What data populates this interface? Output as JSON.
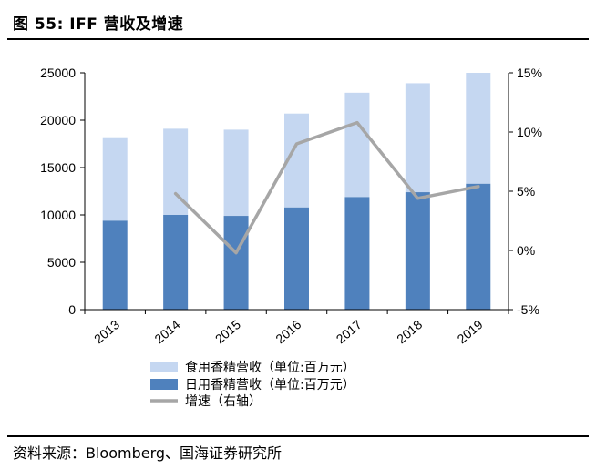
{
  "figure": {
    "title": "图 55: IFF 营收及增速",
    "source": "资料来源：Bloomberg、国海证券研究所"
  },
  "colors": {
    "food_flavor": "#c5d7f1",
    "daily_flavor": "#4f81bd",
    "growth_line": "#a6a6a6",
    "axis": "#000000"
  },
  "chart_data": {
    "type": "bar",
    "stacked": true,
    "categories": [
      "2013",
      "2014",
      "2015",
      "2016",
      "2017",
      "2018",
      "2019"
    ],
    "series": [
      {
        "name": "日用香精营收（单位:百万元）",
        "kind": "bar",
        "axis": "left",
        "values": [
          9400,
          10000,
          9900,
          10800,
          11900,
          12400,
          13300
        ]
      },
      {
        "name": "食用香精营收（单位:百万元）",
        "kind": "bar",
        "axis": "left",
        "values": [
          8800,
          9100,
          9100,
          9900,
          11000,
          11500,
          11700
        ]
      },
      {
        "name": "增速（右轴）",
        "kind": "line",
        "axis": "right",
        "values": [
          null,
          4.8,
          -0.2,
          9.0,
          10.8,
          4.4,
          5.4
        ]
      }
    ],
    "y_left": {
      "min": 0,
      "max": 25000,
      "ticks": [
        "0",
        "5000",
        "10000",
        "15000",
        "20000",
        "25000"
      ]
    },
    "y_right": {
      "min": -5,
      "max": 15,
      "ticks": [
        "-5%",
        "0%",
        "5%",
        "10%",
        "15%"
      ]
    },
    "legend": [
      "食用香精营收（单位:百万元）",
      "日用香精营收（单位:百万元）",
      "增速（右轴）"
    ],
    "legend_position": "bottom"
  }
}
